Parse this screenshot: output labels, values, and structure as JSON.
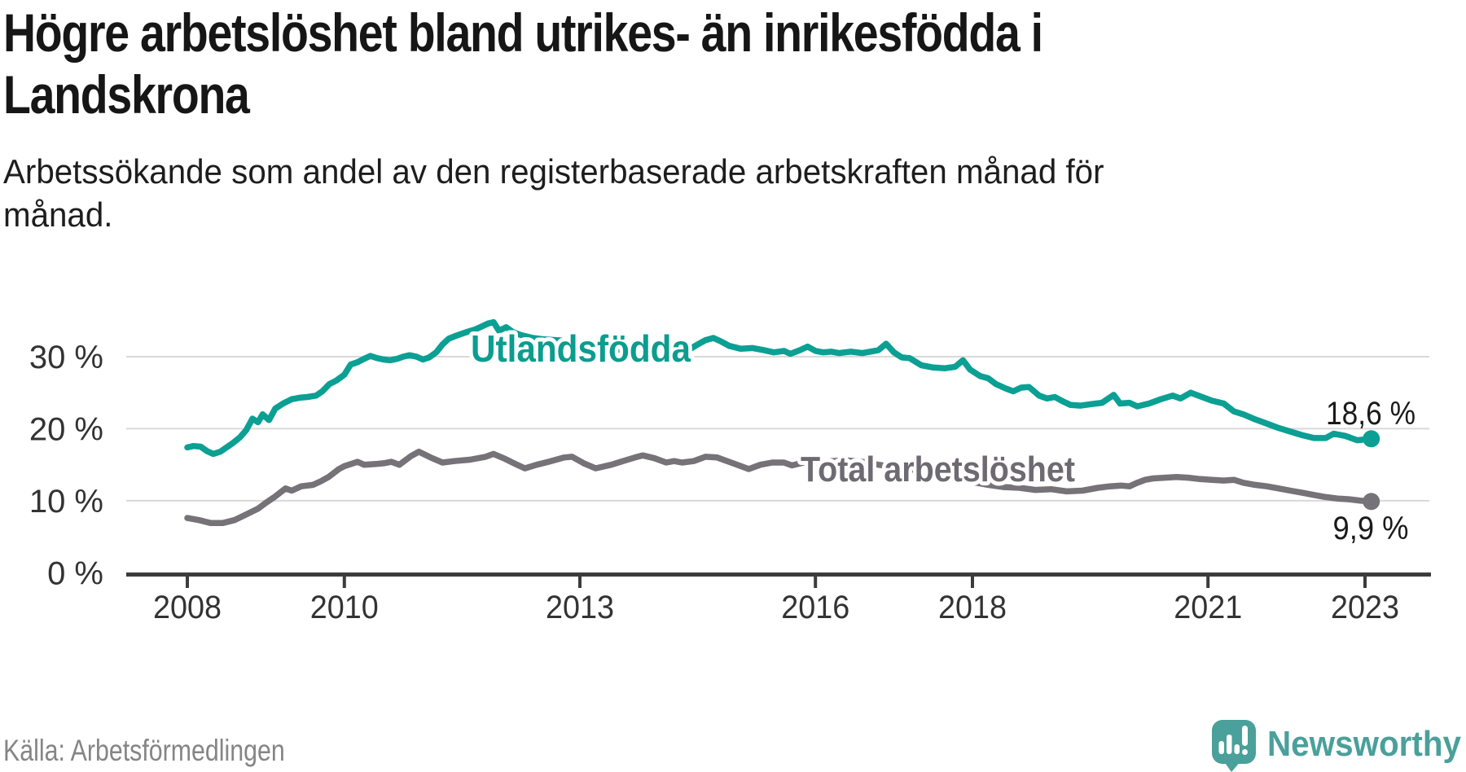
{
  "header": {
    "title_line1": "Högre arbetslöshet bland utrikes- än inrikesfödda i",
    "title_line2": "Landskrona",
    "subtitle_line1": "Arbetssökande som andel av den registerbaserade arbetskraften månad för",
    "subtitle_line2": "månad."
  },
  "footer": {
    "source": "Källa: Arbetsförmedlingen",
    "brand_name": "Newsworthy"
  },
  "colors": {
    "teal_series": "#0ba093",
    "gray_series": "#757278",
    "teal_label": "#0b9d8f",
    "gray_label": "#6e6a71",
    "grid": "#d9d9d9",
    "axis": "#3c3c3c",
    "brand_teal": "#4aa09a"
  },
  "chart_data": {
    "type": "line",
    "title": "Högre arbetslöshet bland utrikes- än inrikesfödda i Landskrona",
    "subtitle": "Arbetssökande som andel av den registerbaserade arbetskraften månad för månad.",
    "unit": "%",
    "grid": "horizontal-only",
    "legend_position": "inline-labels",
    "x_axis": {
      "ticks": [
        2008,
        2010,
        2013,
        2016,
        2018,
        2021,
        2023
      ],
      "tick_labels": [
        "2008",
        "2010",
        "2013",
        "2016",
        "2018",
        "2021",
        "2023"
      ],
      "range": [
        2007.2,
        2023.85
      ]
    },
    "y_axis": {
      "gridline_values": [
        30,
        20,
        10
      ],
      "ticks": [
        {
          "value": 30,
          "label": "30 %"
        },
        {
          "value": 20,
          "label": "20 %"
        },
        {
          "value": 10,
          "label": "10 %"
        },
        {
          "value": 0,
          "label": "0 %"
        }
      ],
      "range": [
        0,
        37
      ]
    },
    "series": [
      {
        "name": "Utlandsfödda",
        "color": "#0ba093",
        "label_color": "#0b9d8f",
        "end_label": "18,6 %",
        "end_value": 18.6,
        "data": [
          [
            2008.0,
            17.4
          ],
          [
            2008.08,
            17.6
          ],
          [
            2008.17,
            17.5
          ],
          [
            2008.25,
            16.9
          ],
          [
            2008.33,
            16.5
          ],
          [
            2008.42,
            16.8
          ],
          [
            2008.5,
            17.4
          ],
          [
            2008.58,
            18.0
          ],
          [
            2008.67,
            18.8
          ],
          [
            2008.75,
            19.8
          ],
          [
            2008.83,
            21.4
          ],
          [
            2008.9,
            20.9
          ],
          [
            2008.96,
            22.0
          ],
          [
            2009.04,
            21.2
          ],
          [
            2009.12,
            22.8
          ],
          [
            2009.22,
            23.5
          ],
          [
            2009.33,
            24.1
          ],
          [
            2009.43,
            24.3
          ],
          [
            2009.53,
            24.4
          ],
          [
            2009.64,
            24.6
          ],
          [
            2009.72,
            25.2
          ],
          [
            2009.81,
            26.2
          ],
          [
            2009.9,
            26.7
          ],
          [
            2010.0,
            27.5
          ],
          [
            2010.08,
            28.9
          ],
          [
            2010.16,
            29.2
          ],
          [
            2010.25,
            29.7
          ],
          [
            2010.33,
            30.1
          ],
          [
            2010.42,
            29.8
          ],
          [
            2010.5,
            29.6
          ],
          [
            2010.58,
            29.5
          ],
          [
            2010.67,
            29.7
          ],
          [
            2010.75,
            30.0
          ],
          [
            2010.83,
            30.2
          ],
          [
            2010.92,
            30.0
          ],
          [
            2011.0,
            29.6
          ],
          [
            2011.08,
            29.9
          ],
          [
            2011.17,
            30.6
          ],
          [
            2011.25,
            31.7
          ],
          [
            2011.33,
            32.5
          ],
          [
            2011.42,
            32.9
          ],
          [
            2011.5,
            33.2
          ],
          [
            2011.58,
            33.5
          ],
          [
            2011.67,
            33.8
          ],
          [
            2011.75,
            34.2
          ],
          [
            2011.83,
            34.6
          ],
          [
            2011.9,
            34.8
          ],
          [
            2011.97,
            33.6
          ],
          [
            2012.06,
            34.1
          ],
          [
            2012.15,
            33.4
          ],
          [
            2012.25,
            33.0
          ],
          [
            2012.4,
            32.6
          ],
          [
            2012.55,
            32.4
          ],
          [
            2012.7,
            32.3
          ],
          [
            2012.85,
            32.2
          ],
          [
            2013.0,
            31.8
          ],
          [
            2013.15,
            31.4
          ],
          [
            2013.3,
            31.2
          ],
          [
            2013.45,
            31.0
          ],
          [
            2013.6,
            30.9
          ],
          [
            2013.75,
            30.9
          ],
          [
            2013.9,
            30.8
          ],
          [
            2014.05,
            30.6
          ],
          [
            2014.2,
            30.3
          ],
          [
            2014.35,
            30.7
          ],
          [
            2014.5,
            31.7
          ],
          [
            2014.6,
            32.3
          ],
          [
            2014.7,
            32.6
          ],
          [
            2014.8,
            32.1
          ],
          [
            2014.9,
            31.5
          ],
          [
            2015.05,
            31.1
          ],
          [
            2015.2,
            31.2
          ],
          [
            2015.35,
            30.9
          ],
          [
            2015.47,
            30.6
          ],
          [
            2015.6,
            30.8
          ],
          [
            2015.68,
            30.4
          ],
          [
            2015.8,
            30.9
          ],
          [
            2015.9,
            31.4
          ],
          [
            2016.0,
            30.8
          ],
          [
            2016.1,
            30.6
          ],
          [
            2016.2,
            30.7
          ],
          [
            2016.3,
            30.5
          ],
          [
            2016.45,
            30.7
          ],
          [
            2016.6,
            30.5
          ],
          [
            2016.7,
            30.7
          ],
          [
            2016.8,
            30.9
          ],
          [
            2016.9,
            31.8
          ],
          [
            2017.0,
            30.6
          ],
          [
            2017.1,
            29.9
          ],
          [
            2017.2,
            29.8
          ],
          [
            2017.35,
            28.8
          ],
          [
            2017.5,
            28.5
          ],
          [
            2017.65,
            28.4
          ],
          [
            2017.78,
            28.6
          ],
          [
            2017.88,
            29.5
          ],
          [
            2017.97,
            28.2
          ],
          [
            2018.1,
            27.3
          ],
          [
            2018.2,
            27.0
          ],
          [
            2018.3,
            26.2
          ],
          [
            2018.42,
            25.6
          ],
          [
            2018.52,
            25.2
          ],
          [
            2018.62,
            25.7
          ],
          [
            2018.72,
            25.8
          ],
          [
            2018.85,
            24.6
          ],
          [
            2018.95,
            24.2
          ],
          [
            2019.05,
            24.4
          ],
          [
            2019.15,
            23.8
          ],
          [
            2019.25,
            23.3
          ],
          [
            2019.38,
            23.2
          ],
          [
            2019.5,
            23.4
          ],
          [
            2019.65,
            23.6
          ],
          [
            2019.8,
            24.7
          ],
          [
            2019.88,
            23.5
          ],
          [
            2020.0,
            23.6
          ],
          [
            2020.1,
            23.1
          ],
          [
            2020.25,
            23.5
          ],
          [
            2020.4,
            24.1
          ],
          [
            2020.55,
            24.6
          ],
          [
            2020.65,
            24.2
          ],
          [
            2020.78,
            25.0
          ],
          [
            2020.9,
            24.5
          ],
          [
            2021.05,
            23.9
          ],
          [
            2021.2,
            23.5
          ],
          [
            2021.33,
            22.4
          ],
          [
            2021.45,
            22.0
          ],
          [
            2021.6,
            21.3
          ],
          [
            2021.75,
            20.7
          ],
          [
            2021.9,
            20.1
          ],
          [
            2022.05,
            19.6
          ],
          [
            2022.2,
            19.1
          ],
          [
            2022.35,
            18.7
          ],
          [
            2022.5,
            18.7
          ],
          [
            2022.6,
            19.3
          ],
          [
            2022.75,
            19.0
          ],
          [
            2022.9,
            18.4
          ],
          [
            2023.08,
            18.6
          ]
        ]
      },
      {
        "name": "Total arbetslöshet",
        "color": "#757278",
        "label_color": "#6e6a71",
        "end_label": "9,9 %",
        "end_value": 9.9,
        "data": [
          [
            2008.0,
            7.6
          ],
          [
            2008.15,
            7.3
          ],
          [
            2008.3,
            6.9
          ],
          [
            2008.45,
            6.9
          ],
          [
            2008.6,
            7.3
          ],
          [
            2008.75,
            8.1
          ],
          [
            2008.9,
            8.9
          ],
          [
            2009.0,
            9.7
          ],
          [
            2009.12,
            10.6
          ],
          [
            2009.25,
            11.7
          ],
          [
            2009.33,
            11.4
          ],
          [
            2009.45,
            12.0
          ],
          [
            2009.6,
            12.2
          ],
          [
            2009.7,
            12.7
          ],
          [
            2009.8,
            13.3
          ],
          [
            2009.93,
            14.4
          ],
          [
            2010.0,
            14.8
          ],
          [
            2010.17,
            15.4
          ],
          [
            2010.25,
            15.0
          ],
          [
            2010.4,
            15.1
          ],
          [
            2010.5,
            15.2
          ],
          [
            2010.6,
            15.4
          ],
          [
            2010.7,
            15.0
          ],
          [
            2010.85,
            16.2
          ],
          [
            2010.95,
            16.8
          ],
          [
            2011.1,
            16.0
          ],
          [
            2011.25,
            15.3
          ],
          [
            2011.4,
            15.5
          ],
          [
            2011.6,
            15.7
          ],
          [
            2011.8,
            16.1
          ],
          [
            2011.9,
            16.5
          ],
          [
            2012.05,
            15.8
          ],
          [
            2012.2,
            15.0
          ],
          [
            2012.3,
            14.5
          ],
          [
            2012.45,
            15.0
          ],
          [
            2012.6,
            15.4
          ],
          [
            2012.8,
            16.0
          ],
          [
            2012.9,
            16.1
          ],
          [
            2013.05,
            15.2
          ],
          [
            2013.2,
            14.5
          ],
          [
            2013.4,
            15.0
          ],
          [
            2013.55,
            15.5
          ],
          [
            2013.7,
            16.0
          ],
          [
            2013.8,
            16.3
          ],
          [
            2013.95,
            15.9
          ],
          [
            2014.1,
            15.3
          ],
          [
            2014.2,
            15.5
          ],
          [
            2014.3,
            15.3
          ],
          [
            2014.45,
            15.5
          ],
          [
            2014.6,
            16.1
          ],
          [
            2014.75,
            16.0
          ],
          [
            2014.9,
            15.4
          ],
          [
            2015.05,
            14.8
          ],
          [
            2015.15,
            14.4
          ],
          [
            2015.3,
            15.0
          ],
          [
            2015.45,
            15.3
          ],
          [
            2015.6,
            15.3
          ],
          [
            2015.7,
            14.9
          ],
          [
            2015.85,
            15.3
          ],
          [
            2016.0,
            15.3
          ],
          [
            2016.2,
            15.5
          ],
          [
            2016.4,
            15.6
          ],
          [
            2016.6,
            15.4
          ],
          [
            2016.8,
            15.0
          ],
          [
            2017.0,
            14.7
          ],
          [
            2017.2,
            14.4
          ],
          [
            2017.4,
            14.0
          ],
          [
            2017.6,
            13.5
          ],
          [
            2017.8,
            13.0
          ],
          [
            2018.0,
            12.6
          ],
          [
            2018.2,
            12.2
          ],
          [
            2018.4,
            11.9
          ],
          [
            2018.6,
            11.8
          ],
          [
            2018.8,
            11.5
          ],
          [
            2019.0,
            11.6
          ],
          [
            2019.2,
            11.3
          ],
          [
            2019.4,
            11.4
          ],
          [
            2019.6,
            11.8
          ],
          [
            2019.75,
            12.0
          ],
          [
            2019.9,
            12.1
          ],
          [
            2020.0,
            12.0
          ],
          [
            2020.1,
            12.5
          ],
          [
            2020.2,
            12.9
          ],
          [
            2020.3,
            13.1
          ],
          [
            2020.45,
            13.2
          ],
          [
            2020.6,
            13.3
          ],
          [
            2020.75,
            13.2
          ],
          [
            2020.9,
            13.0
          ],
          [
            2021.05,
            12.9
          ],
          [
            2021.2,
            12.8
          ],
          [
            2021.33,
            12.9
          ],
          [
            2021.45,
            12.5
          ],
          [
            2021.6,
            12.2
          ],
          [
            2021.75,
            12.0
          ],
          [
            2021.9,
            11.7
          ],
          [
            2022.05,
            11.4
          ],
          [
            2022.2,
            11.1
          ],
          [
            2022.35,
            10.8
          ],
          [
            2022.5,
            10.5
          ],
          [
            2022.65,
            10.3
          ],
          [
            2022.8,
            10.2
          ],
          [
            2022.95,
            10.0
          ],
          [
            2023.08,
            9.9
          ]
        ]
      }
    ]
  }
}
